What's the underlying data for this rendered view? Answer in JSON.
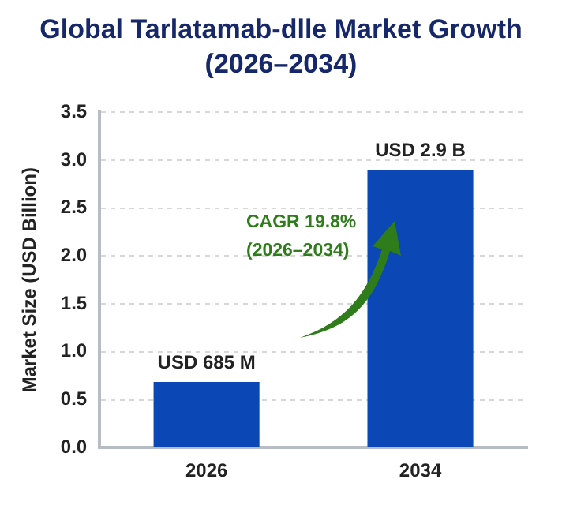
{
  "chart_data": {
    "type": "bar",
    "title": "Global Tarlatamab-dlle Market Growth (2026–2034)",
    "ylabel": "Market Size (USD Billion)",
    "categories": [
      "2026",
      "2034"
    ],
    "values": [
      0.685,
      2.9
    ],
    "value_labels": [
      "USD 685 M",
      "USD 2.9 B"
    ],
    "color": "#0b47b5",
    "ylim": [
      0,
      3.5
    ],
    "yticks": [
      {
        "value": 0,
        "label": "0.0"
      },
      0.5,
      {
        "value": 1,
        "label": "1.0"
      },
      1.5,
      {
        "value": 2,
        "label": "2.0"
      },
      2.5,
      {
        "value": 3,
        "label": "3.0"
      },
      3.5
    ],
    "grid": "y",
    "annotations": [
      "CAGR 19.8% (2026–2034)"
    ]
  }
}
